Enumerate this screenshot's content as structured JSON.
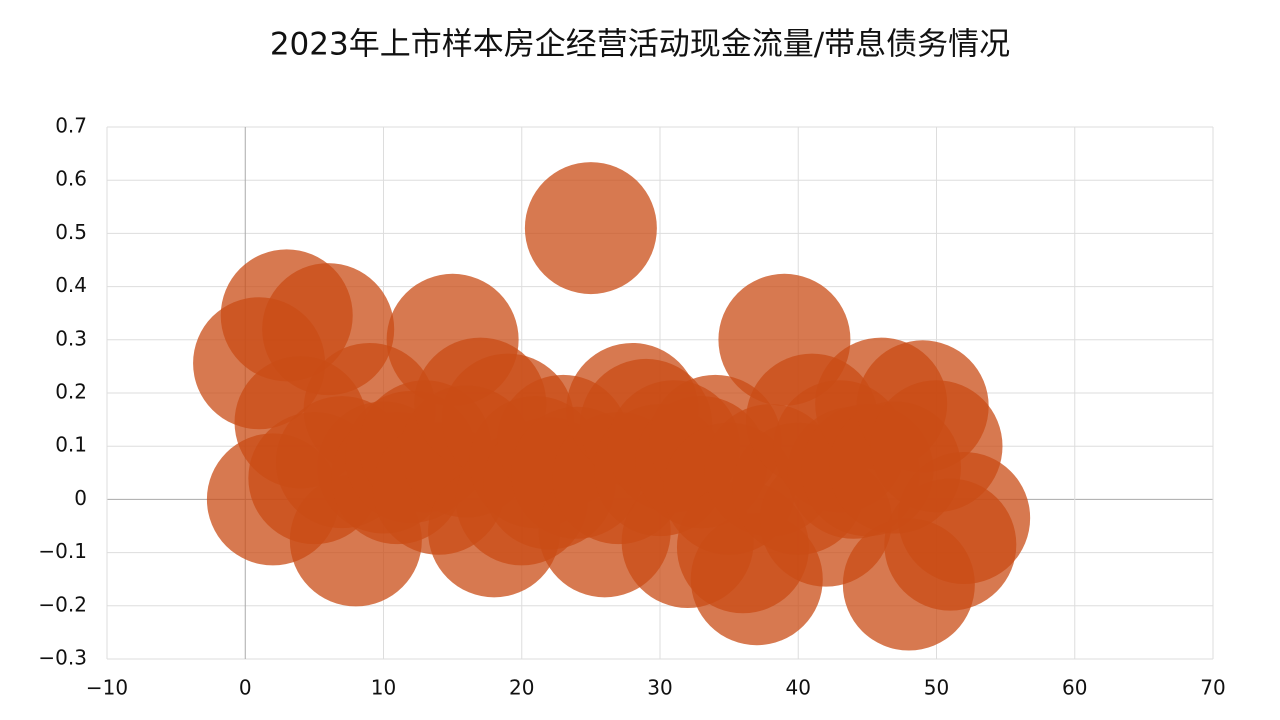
{
  "chart_data": {
    "type": "scatter",
    "title": "2023年上市样本房企经营活动现金流量/带息债务情况",
    "x": [
      1,
      2,
      3,
      4,
      5,
      6,
      7,
      8,
      9,
      10,
      11,
      12,
      13,
      14,
      15,
      16,
      17,
      18,
      19,
      20,
      21,
      22,
      23,
      24,
      25,
      26,
      27,
      28,
      29,
      30,
      31,
      32,
      33,
      34,
      35,
      36,
      37,
      38,
      39,
      40,
      41,
      42,
      43,
      44,
      45,
      46,
      47,
      48,
      49,
      50,
      51,
      52
    ],
    "values": [
      0.256,
      0.0,
      0.346,
      0.145,
      0.04,
      0.32,
      0.07,
      -0.077,
      0.17,
      0.06,
      0.04,
      0.08,
      0.1,
      0.02,
      0.3,
      0.09,
      0.18,
      -0.06,
      0.15,
      0.0,
      0.07,
      0.03,
      0.11,
      0.05,
      0.51,
      -0.06,
      0.04,
      0.17,
      0.14,
      0.055,
      0.1,
      -0.08,
      0.07,
      0.11,
      0.02,
      -0.09,
      -0.15,
      0.055,
      0.3,
      0.02,
      0.15,
      -0.04,
      0.1,
      0.05,
      0.055,
      0.18,
      0.06,
      -0.16,
      0.175,
      0.1,
      -0.085,
      -0.035
    ],
    "color": "#c94c16",
    "xlim": [
      -10,
      70
    ],
    "xticks": [
      {
        "value": -10,
        "label": "−10"
      },
      0,
      10,
      20,
      30,
      40,
      50,
      60,
      70
    ],
    "ylim": [
      -0.3,
      0.7
    ],
    "yticks": [
      {
        "value": -0.3,
        "label": "−0.3"
      },
      {
        "value": -0.2,
        "label": "−0.2"
      },
      {
        "value": -0.1,
        "label": "−0.1"
      },
      0,
      0.1,
      0.2,
      0.3,
      0.4,
      0.5,
      0.6,
      0.7
    ],
    "grid": true
  }
}
